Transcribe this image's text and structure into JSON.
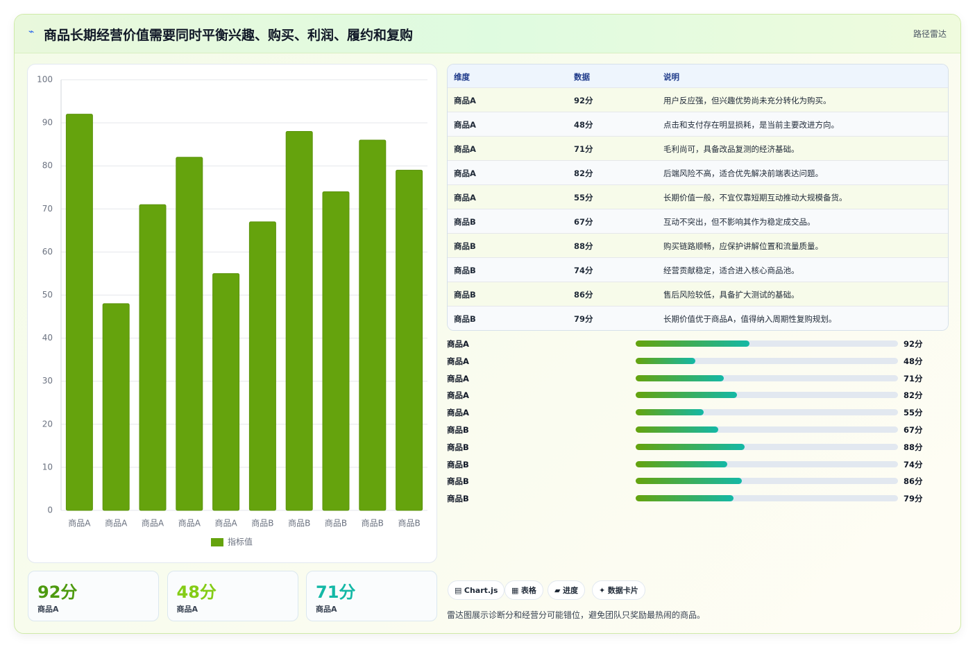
{
  "header": {
    "title": "商品长期经营价值需要同时平衡兴趣、购买、利润、履约和复购",
    "badge": "路径雷达"
  },
  "chart_data": {
    "type": "bar",
    "categories": [
      "商品A",
      "商品A",
      "商品A",
      "商品A",
      "商品A",
      "商品B",
      "商品B",
      "商品B",
      "商品B",
      "商品B"
    ],
    "series": [
      {
        "name": "指标值",
        "color": "#65a30d",
        "values": [
          92,
          48,
          71,
          82,
          55,
          67,
          88,
          74,
          86,
          79
        ]
      }
    ],
    "ylim": [
      0,
      100
    ],
    "yticks": [
      0,
      10,
      20,
      30,
      40,
      50,
      60,
      70,
      80,
      90,
      100
    ],
    "grid": true,
    "legend": "bottom"
  },
  "table": {
    "columns": [
      "维度",
      "数据",
      "说明"
    ],
    "rows": [
      [
        "商品A",
        "92分",
        "用户反应强，但兴趣优势尚未充分转化为购买。"
      ],
      [
        "商品A",
        "48分",
        "点击和支付存在明显损耗，是当前主要改进方向。"
      ],
      [
        "商品A",
        "71分",
        "毛利尚可，具备改品复测的经济基础。"
      ],
      [
        "商品A",
        "82分",
        "后端风险不高，适合优先解决前端表达问题。"
      ],
      [
        "商品A",
        "55分",
        "长期价值一般，不宜仅靠短期互动推动大规模备货。"
      ],
      [
        "商品B",
        "67分",
        "互动不突出，但不影响其作为稳定成交品。"
      ],
      [
        "商品B",
        "88分",
        "购买链路顺畅，应保护讲解位置和流量质量。"
      ],
      [
        "商品B",
        "74分",
        "经营贡献稳定，适合进入核心商品池。"
      ],
      [
        "商品B",
        "86分",
        "售后风险较低，具备扩大测试的基础。"
      ],
      [
        "商品B",
        "79分",
        "长期价值优于商品A，值得纳入周期性复购规划。"
      ]
    ]
  },
  "progress": {
    "xlim": [
      0,
      212
    ],
    "labels": [
      "商品A",
      "商品A",
      "商品A",
      "商品A",
      "商品A",
      "商品B",
      "商品B",
      "商品B",
      "商品B",
      "商品B"
    ],
    "values": [
      92,
      48,
      71,
      82,
      55,
      67,
      88,
      74,
      86,
      79
    ],
    "value_labels": [
      "92分",
      "48分",
      "71分",
      "82分",
      "55分",
      "67分",
      "88分",
      "74分",
      "86分",
      "79分"
    ]
  },
  "cards": [
    {
      "value": "92分",
      "label": "商品A"
    },
    {
      "value": "48分",
      "label": "商品A"
    },
    {
      "value": "71分",
      "label": "商品A"
    }
  ],
  "tags": [
    "Chart.js",
    "表格",
    "进度",
    "数据卡片"
  ],
  "note": "雷达图展示诊断分和经营分可能错位，避免团队只奖励最热闹的商品。"
}
